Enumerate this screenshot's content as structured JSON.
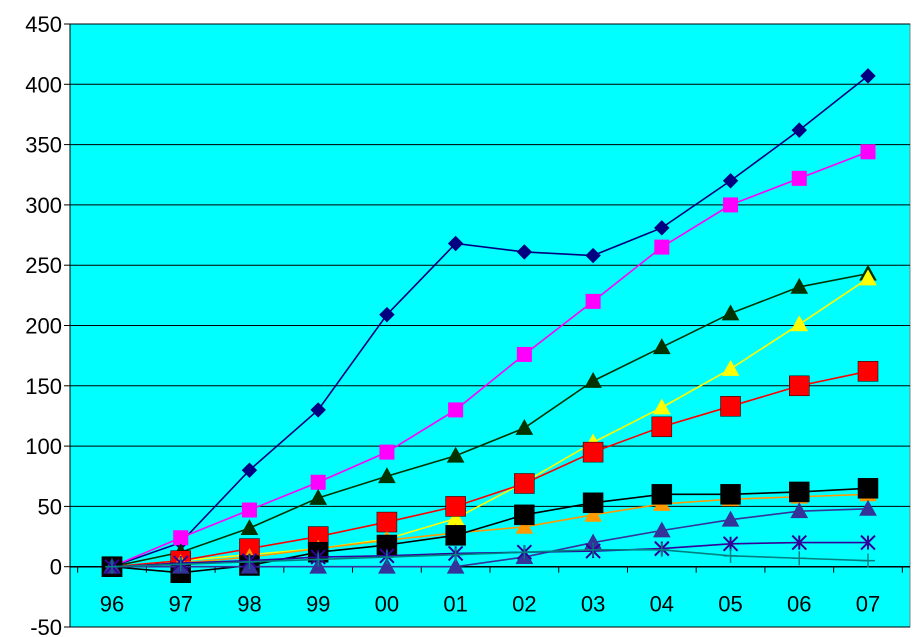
{
  "chart_data": {
    "type": "line",
    "title": "",
    "xlabel": "",
    "ylabel": "",
    "categories": [
      "96",
      "97",
      "98",
      "99",
      "00",
      "01",
      "02",
      "03",
      "04",
      "05",
      "06",
      "07"
    ],
    "ylim": [
      -50,
      450
    ],
    "yticks": [
      "-50",
      "0",
      "50",
      "100",
      "150",
      "200",
      "250",
      "300",
      "350",
      "400",
      "450"
    ],
    "grid": "horizontal",
    "legend": "none",
    "plot_background": "#00FFFF",
    "series": [
      {
        "color": "#000080",
        "marker": "diamond",
        "values": [
          0,
          20,
          80,
          130,
          209,
          268,
          261,
          258,
          281,
          320,
          362,
          407
        ]
      },
      {
        "color": "#FF00FF",
        "marker": "square",
        "values": [
          0,
          24,
          47,
          70,
          95,
          130,
          176,
          220,
          265,
          300,
          322,
          344
        ]
      },
      {
        "color": "#003300",
        "marker": "triangle",
        "values": [
          0,
          12,
          32,
          57,
          75,
          92,
          115,
          154,
          182,
          210,
          232,
          243
        ]
      },
      {
        "color": "#FFFF00",
        "marker": "triangle",
        "values": [
          0,
          5,
          10,
          15,
          23,
          40,
          70,
          103,
          132,
          164,
          201,
          239
        ]
      },
      {
        "color": "#FF0000",
        "marker": "big-square",
        "values": [
          0,
          5,
          15,
          25,
          37,
          50,
          69,
          95,
          116,
          133,
          150,
          162
        ]
      },
      {
        "color": "#FF9900",
        "marker": "triangle",
        "values": [
          0,
          3,
          8,
          15,
          22,
          28,
          33,
          43,
          52,
          56,
          58,
          60
        ]
      },
      {
        "color": "#000000",
        "marker": "big-square",
        "values": [
          0,
          -5,
          1,
          12,
          18,
          26,
          43,
          53,
          60,
          60,
          62,
          65
        ]
      },
      {
        "color": "#333399",
        "marker": "triangle",
        "values": [
          0,
          0,
          0,
          0,
          0,
          0,
          8,
          20,
          30,
          39,
          46,
          48
        ]
      },
      {
        "color": "#330099",
        "marker": "star",
        "values": [
          0,
          3,
          5,
          8,
          9,
          11,
          12,
          13,
          15,
          19,
          20,
          20
        ]
      },
      {
        "color": "#008080",
        "marker": "plus",
        "values": [
          0,
          2,
          4,
          6,
          8,
          10,
          12,
          14,
          14,
          9,
          7,
          5
        ]
      }
    ]
  }
}
